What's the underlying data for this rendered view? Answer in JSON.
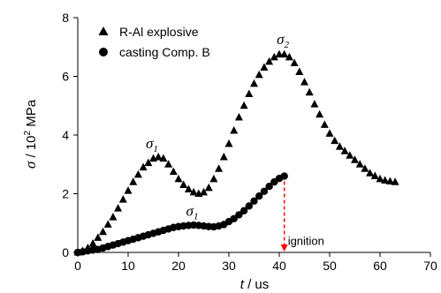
{
  "chart_data": {
    "type": "scatter",
    "x_axis": {
      "label_italic": "t",
      "label_rest": " / us",
      "range": [
        0,
        70
      ],
      "ticks": [
        0,
        10,
        20,
        30,
        40,
        50,
        60,
        70
      ]
    },
    "y_axis": {
      "label_symbol": "σ",
      "label_mid": " / 10",
      "label_sup": "2",
      "label_unit": " MPa",
      "range": [
        0,
        8
      ],
      "ticks": [
        0,
        2,
        4,
        6,
        8
      ]
    },
    "grid": false,
    "legend_position": "top-left",
    "series": [
      {
        "name": "R-Al explosive",
        "marker": "triangle",
        "color": "#000000",
        "x": [
          0,
          1,
          2,
          3,
          4,
          5,
          6,
          7,
          8,
          9,
          10,
          11,
          12,
          13,
          14,
          15,
          16,
          17,
          18,
          19,
          20,
          21,
          22,
          23,
          24,
          25,
          26,
          27,
          28,
          29,
          30,
          31,
          32,
          33,
          34,
          35,
          36,
          37,
          38,
          39,
          40,
          41,
          42,
          43,
          44,
          45,
          46,
          47,
          48,
          49,
          50,
          51,
          52,
          53,
          54,
          55,
          56,
          57,
          58,
          59,
          60,
          61,
          62,
          63
        ],
        "y": [
          0,
          0.05,
          0.15,
          0.3,
          0.5,
          0.7,
          0.95,
          1.2,
          1.5,
          1.8,
          2.1,
          2.4,
          2.65,
          2.9,
          3.05,
          3.2,
          3.25,
          3.2,
          3.0,
          2.75,
          2.5,
          2.3,
          2.15,
          2.05,
          2.0,
          2.05,
          2.2,
          2.5,
          2.85,
          3.25,
          3.7,
          4.15,
          4.6,
          5.0,
          5.4,
          5.75,
          6.05,
          6.3,
          6.5,
          6.65,
          6.75,
          6.75,
          6.65,
          6.45,
          6.15,
          5.8,
          5.45,
          5.05,
          4.7,
          4.35,
          4.05,
          3.8,
          3.6,
          3.45,
          3.3,
          3.15,
          3.0,
          2.85,
          2.7,
          2.6,
          2.5,
          2.45,
          2.42,
          2.4
        ]
      },
      {
        "name": "casting Comp. B",
        "marker": "circle",
        "color": "#000000",
        "x": [
          0,
          1,
          2,
          3,
          4,
          5,
          6,
          7,
          8,
          9,
          10,
          11,
          12,
          13,
          14,
          15,
          16,
          17,
          18,
          19,
          20,
          21,
          22,
          23,
          24,
          25,
          26,
          27,
          28,
          29,
          30,
          31,
          32,
          33,
          34,
          35,
          36,
          37,
          38,
          39,
          40,
          41
        ],
        "y": [
          0,
          0.02,
          0.05,
          0.08,
          0.1,
          0.15,
          0.2,
          0.25,
          0.3,
          0.35,
          0.4,
          0.45,
          0.5,
          0.55,
          0.6,
          0.65,
          0.7,
          0.75,
          0.8,
          0.85,
          0.88,
          0.9,
          0.92,
          0.93,
          0.92,
          0.9,
          0.88,
          0.87,
          0.9,
          0.95,
          1.05,
          1.15,
          1.28,
          1.42,
          1.58,
          1.75,
          1.92,
          2.08,
          2.25,
          2.4,
          2.52,
          2.6
        ]
      }
    ],
    "annotations": [
      {
        "id": "sigma1_rai",
        "symbol": "σ",
        "sub": "1",
        "x": 13.5,
        "y": 3.55
      },
      {
        "id": "sigma2",
        "symbol": "σ",
        "sub": "2",
        "x": 39.5,
        "y": 7.1
      },
      {
        "id": "sigma1_compb",
        "symbol": "σ",
        "sub": "1",
        "x": 21.5,
        "y": 1.25
      },
      {
        "id": "ignition",
        "text": "ignition",
        "x": 41,
        "y": 0.25
      }
    ],
    "ignition_marker": {
      "x": 41,
      "y_from": 2.6,
      "y_to": 0,
      "color": "#ff0000"
    }
  }
}
